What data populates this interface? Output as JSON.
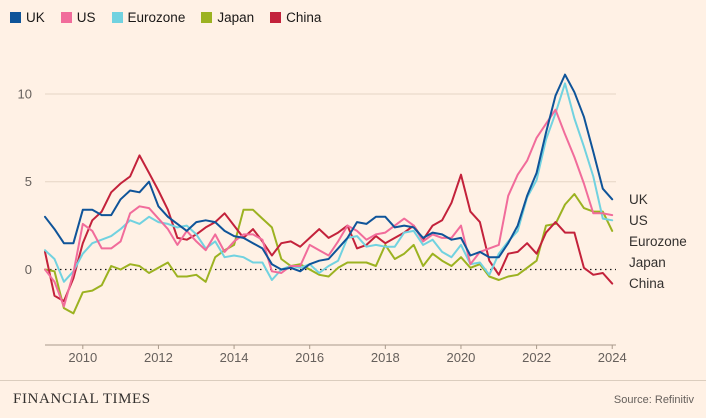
{
  "footer": {
    "brand": "FINANCIAL TIMES",
    "source": "Source: Refinitiv"
  },
  "chart_data": {
    "type": "line",
    "title": "",
    "xlabel": "",
    "ylabel": "",
    "legend_position": "top-left",
    "grid": "horizontal",
    "zero_line": "dotted-black",
    "xlim": [
      2009,
      2024.1
    ],
    "ylim": [
      -4.3,
      13.3
    ],
    "yticks": [
      0,
      5,
      10
    ],
    "xticks": [
      2010,
      2012,
      2014,
      2016,
      2018,
      2020,
      2022,
      2024
    ],
    "end_labels": [
      "UK",
      "US",
      "Eurozone",
      "Japan",
      "China"
    ],
    "colors": {
      "background": "#FFF1E5",
      "gridline": "#E5D5C5",
      "zero_line": "#1A1817",
      "axis": "#A9998A",
      "tick_text": "#66605C",
      "label_text": "#33302E"
    },
    "x": [
      2009,
      2009.25,
      2009.5,
      2009.75,
      2010,
      2010.25,
      2010.5,
      2010.75,
      2011,
      2011.25,
      2011.5,
      2011.75,
      2012,
      2012.25,
      2012.5,
      2012.75,
      2013,
      2013.25,
      2013.5,
      2013.75,
      2014,
      2014.25,
      2014.5,
      2014.75,
      2015,
      2015.25,
      2015.5,
      2015.75,
      2016,
      2016.25,
      2016.5,
      2016.75,
      2017,
      2017.25,
      2017.5,
      2017.75,
      2018,
      2018.25,
      2018.5,
      2018.75,
      2019,
      2019.25,
      2019.5,
      2019.75,
      2020,
      2020.25,
      2020.5,
      2020.75,
      2021,
      2021.25,
      2021.5,
      2021.75,
      2022,
      2022.25,
      2022.5,
      2022.75,
      2023,
      2023.25,
      2023.5,
      2023.75,
      2024
    ],
    "series": [
      {
        "name": "UK",
        "color": "#0F5499",
        "values": [
          3.0,
          2.3,
          1.5,
          1.5,
          3.4,
          3.4,
          3.1,
          3.1,
          4.0,
          4.5,
          4.4,
          5.0,
          3.6,
          3.0,
          2.6,
          2.2,
          2.7,
          2.8,
          2.7,
          2.2,
          1.9,
          1.8,
          1.5,
          1.2,
          0.3,
          0.0,
          0.1,
          -0.1,
          0.3,
          0.5,
          0.6,
          1.2,
          1.8,
          2.7,
          2.6,
          3.0,
          3.0,
          2.4,
          2.5,
          2.4,
          1.8,
          2.1,
          2.0,
          1.7,
          1.8,
          0.8,
          1.0,
          0.7,
          0.7,
          1.5,
          2.5,
          4.2,
          5.5,
          7.8,
          9.9,
          11.1,
          10.1,
          8.7,
          6.7,
          4.6,
          4.0
        ]
      },
      {
        "name": "US",
        "color": "#F16C9B",
        "values": [
          0.0,
          -0.7,
          -2.1,
          -0.2,
          2.6,
          2.2,
          1.2,
          1.2,
          1.6,
          3.2,
          3.6,
          3.5,
          2.9,
          2.3,
          1.4,
          2.2,
          1.6,
          1.1,
          2.0,
          1.0,
          1.6,
          2.0,
          2.0,
          1.7,
          -0.1,
          -0.2,
          0.2,
          0.2,
          1.4,
          1.1,
          0.8,
          1.6,
          2.5,
          2.2,
          1.7,
          2.0,
          2.1,
          2.5,
          2.9,
          2.5,
          1.6,
          2.0,
          1.8,
          1.8,
          2.5,
          0.3,
          1.0,
          1.2,
          1.4,
          4.2,
          5.4,
          6.2,
          7.5,
          8.3,
          9.1,
          7.7,
          6.4,
          4.9,
          3.2,
          3.2,
          3.1
        ]
      },
      {
        "name": "Eurozone",
        "color": "#71D2E0",
        "values": [
          1.1,
          0.6,
          -0.7,
          -0.1,
          0.9,
          1.5,
          1.7,
          1.9,
          2.3,
          2.8,
          2.6,
          3.0,
          2.7,
          2.6,
          2.4,
          2.5,
          2.0,
          1.2,
          1.6,
          0.7,
          0.8,
          0.7,
          0.4,
          0.4,
          -0.6,
          0.0,
          0.2,
          0.1,
          0.3,
          -0.2,
          0.2,
          0.5,
          1.8,
          1.9,
          1.3,
          1.4,
          1.3,
          1.3,
          2.1,
          2.2,
          1.4,
          1.7,
          1.0,
          0.7,
          1.4,
          0.3,
          0.4,
          -0.3,
          0.9,
          1.6,
          2.2,
          4.1,
          5.1,
          7.4,
          8.9,
          10.6,
          8.6,
          7.0,
          5.3,
          2.9,
          2.8
        ]
      },
      {
        "name": "Japan",
        "color": "#9CB221",
        "values": [
          0.0,
          -0.1,
          -2.2,
          -2.5,
          -1.3,
          -1.2,
          -0.9,
          0.2,
          0.0,
          0.3,
          0.2,
          -0.2,
          0.1,
          0.4,
          -0.4,
          -0.4,
          -0.3,
          -0.7,
          0.7,
          1.1,
          1.4,
          3.4,
          3.4,
          2.9,
          2.4,
          0.6,
          0.2,
          0.3,
          0.0,
          -0.3,
          -0.4,
          0.1,
          0.4,
          0.4,
          0.4,
          0.2,
          1.4,
          0.6,
          0.9,
          1.4,
          0.2,
          0.9,
          0.5,
          0.2,
          0.7,
          0.1,
          0.3,
          -0.4,
          -0.6,
          -0.4,
          -0.3,
          0.1,
          0.5,
          2.5,
          2.6,
          3.7,
          4.3,
          3.5,
          3.3,
          3.3,
          2.2
        ]
      },
      {
        "name": "China",
        "color": "#C3223B",
        "values": [
          1.0,
          -1.5,
          -1.8,
          -0.5,
          1.5,
          2.8,
          3.3,
          4.4,
          4.9,
          5.3,
          6.5,
          5.5,
          4.5,
          3.4,
          1.8,
          1.7,
          2.0,
          2.4,
          2.7,
          3.2,
          2.5,
          1.8,
          2.3,
          1.6,
          0.8,
          1.5,
          1.6,
          1.3,
          1.8,
          2.3,
          1.8,
          2.1,
          2.5,
          1.2,
          1.4,
          1.9,
          1.5,
          1.8,
          2.1,
          2.5,
          1.7,
          2.5,
          2.8,
          3.8,
          5.4,
          3.3,
          2.7,
          0.5,
          -0.3,
          0.9,
          1.0,
          1.5,
          0.9,
          2.1,
          2.7,
          2.1,
          2.1,
          0.1,
          -0.3,
          -0.2,
          -0.8
        ]
      }
    ]
  }
}
